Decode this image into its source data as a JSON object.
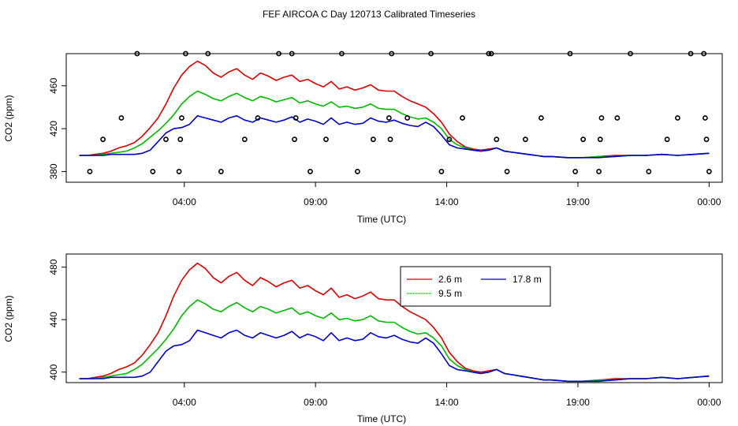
{
  "figure": {
    "title": "FEF AIRCOA C  Day 120713  Calibrated Timeseries"
  },
  "colors": {
    "series_2_6": "#dd0000",
    "series_9_5": "#00bb00",
    "series_17_8": "#0000cc",
    "axis": "#000000",
    "calibration_marker": "#000000"
  },
  "chart_data": [
    {
      "type": "line",
      "ylabel": "CO2 (ppm)",
      "xlabel": "Time (UTC)",
      "xlim": [
        -0.5,
        24.5
      ],
      "ylim": [
        370,
        490
      ],
      "xticks": [
        {
          "value": 4,
          "label": "04:00"
        },
        {
          "value": 9,
          "label": "09:00"
        },
        {
          "value": 14,
          "label": "14:00"
        },
        {
          "value": 19,
          "label": "19:00"
        },
        {
          "value": 24,
          "label": "00:00"
        }
      ],
      "yticks": [
        {
          "value": 380,
          "label": "380"
        },
        {
          "value": 420,
          "label": "420"
        },
        {
          "value": 460,
          "label": "460"
        }
      ],
      "grid": false,
      "legend": "none",
      "series": [
        {
          "name": "2.6 m",
          "x": [
            0,
            0.3,
            0.6,
            0.9,
            1.2,
            1.5,
            1.8,
            2.1,
            2.4,
            2.7,
            3.0,
            3.3,
            3.6,
            3.9,
            4.2,
            4.5,
            4.8,
            5.1,
            5.4,
            5.7,
            6.0,
            6.3,
            6.6,
            6.9,
            7.2,
            7.5,
            7.8,
            8.1,
            8.4,
            8.7,
            9.0,
            9.3,
            9.6,
            9.9,
            10.2,
            10.5,
            10.8,
            11.1,
            11.4,
            11.7,
            12.0,
            12.3,
            12.6,
            12.9,
            13.2,
            13.5,
            13.8,
            14.1,
            14.4,
            14.7,
            15.0,
            15.3,
            15.6,
            15.9,
            16.2,
            16.5,
            16.8,
            17.1,
            17.4,
            17.7,
            18.0,
            18.6,
            19.2,
            19.8,
            20.4,
            21.0,
            21.6,
            22.2,
            22.8,
            23.4,
            24.0
          ],
          "values": [
            395,
            395,
            396,
            397,
            399,
            402,
            404,
            407,
            413,
            421,
            430,
            443,
            458,
            470,
            478,
            483,
            479,
            472,
            468,
            473,
            476,
            470,
            466,
            472,
            469,
            465,
            468,
            470,
            464,
            466,
            462,
            459,
            464,
            457,
            459,
            456,
            458,
            461,
            456,
            455,
            455,
            450,
            446,
            443,
            440,
            434,
            426,
            415,
            408,
            403,
            401,
            400,
            401,
            402,
            399,
            398,
            397,
            396,
            395,
            394,
            394,
            393,
            393,
            394,
            395,
            395,
            395,
            396,
            395,
            396,
            397
          ]
        },
        {
          "name": "9.5 m",
          "x": [
            0,
            0.3,
            0.6,
            0.9,
            1.2,
            1.5,
            1.8,
            2.1,
            2.4,
            2.7,
            3.0,
            3.3,
            3.6,
            3.9,
            4.2,
            4.5,
            4.8,
            5.1,
            5.4,
            5.7,
            6.0,
            6.3,
            6.6,
            6.9,
            7.2,
            7.5,
            7.8,
            8.1,
            8.4,
            8.7,
            9.0,
            9.3,
            9.6,
            9.9,
            10.2,
            10.5,
            10.8,
            11.1,
            11.4,
            11.7,
            12.0,
            12.3,
            12.6,
            12.9,
            13.2,
            13.5,
            13.8,
            14.1,
            14.4,
            14.7,
            15.0,
            15.3,
            15.6,
            15.9,
            16.2,
            16.5,
            16.8,
            17.1,
            17.4,
            17.7,
            18.0,
            18.6,
            19.2,
            19.8,
            20.4,
            21.0,
            21.6,
            22.2,
            22.8,
            23.4,
            24.0
          ],
          "values": [
            395,
            395,
            395,
            396,
            397,
            398,
            399,
            402,
            406,
            412,
            418,
            425,
            433,
            443,
            450,
            455,
            452,
            448,
            446,
            450,
            453,
            449,
            446,
            450,
            448,
            445,
            447,
            449,
            444,
            446,
            443,
            441,
            445,
            440,
            441,
            439,
            440,
            443,
            439,
            438,
            438,
            434,
            431,
            429,
            430,
            426,
            420,
            410,
            405,
            402,
            400,
            399,
            400,
            402,
            399,
            398,
            397,
            396,
            395,
            394,
            394,
            393,
            393,
            394,
            394,
            395,
            395,
            396,
            395,
            396,
            397
          ]
        },
        {
          "name": "17.8 m",
          "x": [
            0,
            0.3,
            0.6,
            0.9,
            1.2,
            1.5,
            1.8,
            2.1,
            2.4,
            2.7,
            3.0,
            3.3,
            3.6,
            3.9,
            4.2,
            4.5,
            4.8,
            5.1,
            5.4,
            5.7,
            6.0,
            6.3,
            6.6,
            6.9,
            7.2,
            7.5,
            7.8,
            8.1,
            8.4,
            8.7,
            9.0,
            9.3,
            9.6,
            9.9,
            10.2,
            10.5,
            10.8,
            11.1,
            11.4,
            11.7,
            12.0,
            12.3,
            12.6,
            12.9,
            13.2,
            13.5,
            13.8,
            14.1,
            14.4,
            14.7,
            15.0,
            15.3,
            15.6,
            15.9,
            16.2,
            16.5,
            16.8,
            17.1,
            17.4,
            17.7,
            18.0,
            18.6,
            19.2,
            19.8,
            20.4,
            21.0,
            21.6,
            22.2,
            22.8,
            23.4,
            24.0
          ],
          "values": [
            395,
            395,
            395,
            395,
            396,
            396,
            396,
            396,
            397,
            400,
            408,
            416,
            420,
            421,
            424,
            432,
            430,
            428,
            426,
            430,
            432,
            428,
            426,
            430,
            428,
            426,
            428,
            431,
            426,
            429,
            427,
            424,
            430,
            424,
            426,
            424,
            425,
            430,
            427,
            426,
            428,
            425,
            423,
            422,
            426,
            422,
            414,
            405,
            402,
            401,
            400,
            399,
            400,
            402,
            399,
            398,
            397,
            396,
            395,
            394,
            394,
            393,
            393,
            393,
            394,
            395,
            395,
            396,
            395,
            396,
            397
          ]
        }
      ],
      "calibration_markers": {
        "x": [
          0.4,
          0.9,
          1.6,
          2.2,
          2.8,
          3.3,
          3.8,
          3.85,
          3.9,
          4.05,
          4.9,
          5.4,
          6.3,
          6.8,
          7.6,
          8.1,
          8.2,
          8.25,
          8.8,
          9.4,
          10.0,
          10.6,
          11.2,
          11.8,
          11.85,
          11.9,
          12.5,
          13.4,
          13.8,
          14.1,
          14.6,
          15.6,
          15.7,
          15.9,
          16.3,
          17.0,
          17.6,
          18.7,
          18.9,
          19.2,
          19.8,
          19.85,
          19.9,
          20.5,
          21.0,
          21.7,
          22.4,
          22.8,
          23.3,
          23.8,
          23.85,
          23.9,
          24.0
        ],
        "values": [
          380,
          410,
          430,
          490,
          380,
          410,
          380,
          410,
          430,
          490,
          490,
          380,
          410,
          430,
          490,
          490,
          410,
          430,
          380,
          410,
          490,
          380,
          410,
          430,
          410,
          490,
          430,
          490,
          380,
          410,
          430,
          490,
          490,
          410,
          380,
          410,
          430,
          490,
          380,
          410,
          380,
          410,
          430,
          430,
          490,
          380,
          410,
          430,
          490,
          490,
          430,
          410,
          380
        ]
      }
    },
    {
      "type": "line",
      "ylabel": "CO2 (ppm)",
      "xlabel": "Time (UTC)",
      "xlim": [
        -0.5,
        24.5
      ],
      "ylim": [
        392,
        490
      ],
      "xticks": [
        {
          "value": 4,
          "label": "04:00"
        },
        {
          "value": 9,
          "label": "09:00"
        },
        {
          "value": 14,
          "label": "14:00"
        },
        {
          "value": 19,
          "label": "19:00"
        },
        {
          "value": 24,
          "label": "00:00"
        }
      ],
      "yticks": [
        {
          "value": 400,
          "label": "400"
        },
        {
          "value": 440,
          "label": "440"
        },
        {
          "value": 480,
          "label": "480"
        }
      ],
      "grid": false,
      "legend": "top-center",
      "series": [
        {
          "name": "2.6 m",
          "x": [
            0,
            0.3,
            0.6,
            0.9,
            1.2,
            1.5,
            1.8,
            2.1,
            2.4,
            2.7,
            3.0,
            3.3,
            3.6,
            3.9,
            4.2,
            4.5,
            4.8,
            5.1,
            5.4,
            5.7,
            6.0,
            6.3,
            6.6,
            6.9,
            7.2,
            7.5,
            7.8,
            8.1,
            8.4,
            8.7,
            9.0,
            9.3,
            9.6,
            9.9,
            10.2,
            10.5,
            10.8,
            11.1,
            11.4,
            11.7,
            12.0,
            12.3,
            12.6,
            12.9,
            13.2,
            13.5,
            13.8,
            14.1,
            14.4,
            14.7,
            15.0,
            15.3,
            15.6,
            15.9,
            16.2,
            16.5,
            16.8,
            17.1,
            17.4,
            17.7,
            18.0,
            18.6,
            19.2,
            19.8,
            20.4,
            21.0,
            21.6,
            22.2,
            22.8,
            23.4,
            24.0
          ],
          "values": [
            395,
            395,
            396,
            397,
            399,
            402,
            404,
            407,
            413,
            421,
            430,
            443,
            458,
            470,
            478,
            483,
            479,
            472,
            468,
            473,
            476,
            470,
            466,
            472,
            469,
            465,
            468,
            470,
            464,
            466,
            462,
            459,
            464,
            457,
            459,
            456,
            458,
            461,
            456,
            455,
            455,
            450,
            446,
            443,
            440,
            434,
            426,
            415,
            408,
            403,
            401,
            400,
            401,
            402,
            399,
            398,
            397,
            396,
            395,
            394,
            394,
            393,
            393,
            394,
            395,
            395,
            395,
            396,
            395,
            396,
            397
          ]
        },
        {
          "name": "9.5 m",
          "x": [
            0,
            0.3,
            0.6,
            0.9,
            1.2,
            1.5,
            1.8,
            2.1,
            2.4,
            2.7,
            3.0,
            3.3,
            3.6,
            3.9,
            4.2,
            4.5,
            4.8,
            5.1,
            5.4,
            5.7,
            6.0,
            6.3,
            6.6,
            6.9,
            7.2,
            7.5,
            7.8,
            8.1,
            8.4,
            8.7,
            9.0,
            9.3,
            9.6,
            9.9,
            10.2,
            10.5,
            10.8,
            11.1,
            11.4,
            11.7,
            12.0,
            12.3,
            12.6,
            12.9,
            13.2,
            13.5,
            13.8,
            14.1,
            14.4,
            14.7,
            15.0,
            15.3,
            15.6,
            15.9,
            16.2,
            16.5,
            16.8,
            17.1,
            17.4,
            17.7,
            18.0,
            18.6,
            19.2,
            19.8,
            20.4,
            21.0,
            21.6,
            22.2,
            22.8,
            23.4,
            24.0
          ],
          "values": [
            395,
            395,
            395,
            396,
            397,
            398,
            399,
            402,
            406,
            412,
            418,
            425,
            433,
            443,
            450,
            455,
            452,
            448,
            446,
            450,
            453,
            449,
            446,
            450,
            448,
            445,
            447,
            449,
            444,
            446,
            443,
            441,
            445,
            440,
            441,
            439,
            440,
            443,
            439,
            438,
            438,
            434,
            431,
            429,
            430,
            426,
            420,
            410,
            405,
            402,
            400,
            399,
            400,
            402,
            399,
            398,
            397,
            396,
            395,
            394,
            394,
            393,
            393,
            394,
            394,
            395,
            395,
            396,
            395,
            396,
            397
          ]
        },
        {
          "name": "17.8 m",
          "x": [
            0,
            0.3,
            0.6,
            0.9,
            1.2,
            1.5,
            1.8,
            2.1,
            2.4,
            2.7,
            3.0,
            3.3,
            3.6,
            3.9,
            4.2,
            4.5,
            4.8,
            5.1,
            5.4,
            5.7,
            6.0,
            6.3,
            6.6,
            6.9,
            7.2,
            7.5,
            7.8,
            8.1,
            8.4,
            8.7,
            9.0,
            9.3,
            9.6,
            9.9,
            10.2,
            10.5,
            10.8,
            11.1,
            11.4,
            11.7,
            12.0,
            12.3,
            12.6,
            12.9,
            13.2,
            13.5,
            13.8,
            14.1,
            14.4,
            14.7,
            15.0,
            15.3,
            15.6,
            15.9,
            16.2,
            16.5,
            16.8,
            17.1,
            17.4,
            17.7,
            18.0,
            18.6,
            19.2,
            19.8,
            20.4,
            21.0,
            21.6,
            22.2,
            22.8,
            23.4,
            24.0
          ],
          "values": [
            395,
            395,
            395,
            395,
            396,
            396,
            396,
            396,
            397,
            400,
            408,
            416,
            420,
            421,
            424,
            432,
            430,
            428,
            426,
            430,
            432,
            428,
            426,
            430,
            428,
            426,
            428,
            431,
            426,
            429,
            427,
            424,
            430,
            424,
            426,
            424,
            425,
            430,
            427,
            426,
            428,
            425,
            423,
            422,
            426,
            422,
            414,
            405,
            402,
            401,
            400,
            399,
            400,
            402,
            399,
            398,
            397,
            396,
            395,
            394,
            394,
            393,
            393,
            393,
            394,
            395,
            395,
            396,
            395,
            396,
            397
          ]
        }
      ]
    }
  ]
}
